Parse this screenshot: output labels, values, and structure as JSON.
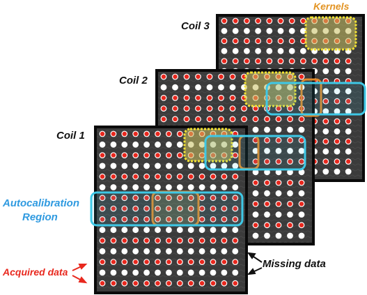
{
  "labels": {
    "coil3": "Coil 3",
    "coil2": "Coil 2",
    "coil1": "Coil 1",
    "kernels": "Kernels",
    "autocal_line1": "Autocalibration",
    "autocal_line2": "Region",
    "acquired": "Acquired data",
    "missing": "Missing data"
  },
  "colors": {
    "panel_bg": "#3b3b3b",
    "panel_border": "#0a0a0a",
    "acquired_dot": "#e8281e",
    "missing_dot": "#ffffff",
    "autocal": "#3ec8e6",
    "kernel_fill": "#c8c060",
    "kernel_border": "#f3e233",
    "kernel_outline": "#e0892a",
    "kernels_text": "#e39424",
    "autocal_text": "#2f9ae0",
    "acquired_text": "#e8281e",
    "label_text": "#111111"
  },
  "grid": {
    "rows": 16,
    "cols": 12,
    "pattern": "alternating rows: acquired (red) / missing (white); central autocalibration rows fully acquired"
  },
  "legend": {
    "acquired": "red dots",
    "missing": "white dots"
  }
}
